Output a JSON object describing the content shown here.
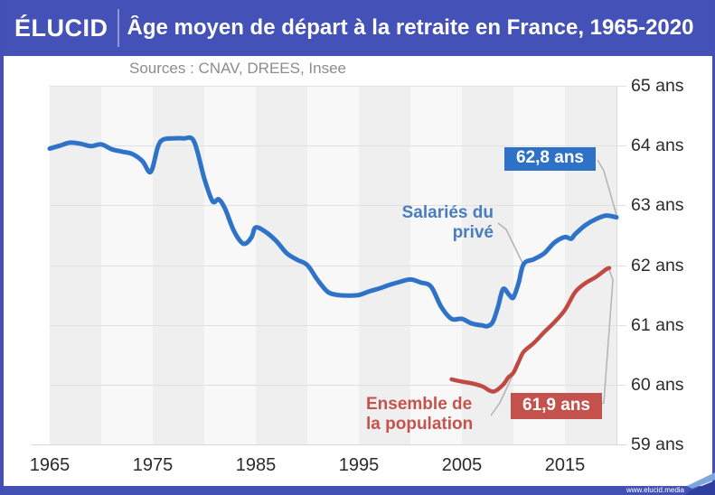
{
  "header": {
    "logo": "ÉLUCID",
    "title": "Âge moyen de départ à la retraite en France, 1965-2020"
  },
  "sources": "Sources : CNAV, DREES, Insee",
  "footer": {
    "url": "www.elucid.media"
  },
  "annotations": {
    "private_label_line1": "Salariés du",
    "private_label_line2": "privé",
    "private_badge": "62,8 ans",
    "population_label_line1": "Ensemble de",
    "population_label_line2": "la population",
    "population_badge": "61,9 ans"
  },
  "colors": {
    "header_blue": "#4452b8",
    "private_line": "#2f73c8",
    "population_line": "#bf4943",
    "private_badge_bg": "#2e72c7",
    "population_badge_bg": "#c4524c",
    "gridline": "#e0e0e0",
    "leader": "#b3b3b3"
  },
  "chart_data": {
    "type": "line",
    "title": "Âge moyen de départ à la retraite en France, 1965-2020",
    "sources": "Sources : CNAV, DREES, Insee",
    "x_axis": {
      "ticks": [
        1965,
        1975,
        1985,
        1995,
        2005,
        2015
      ],
      "range": [
        1965,
        2020
      ]
    },
    "y_axis": {
      "tick_labels": [
        "65 ans",
        "64 ans",
        "63 ans",
        "62 ans",
        "61 ans",
        "60 ans",
        "59 ans"
      ],
      "range": [
        59,
        65
      ],
      "unit": "ans",
      "grid": true
    },
    "legend_position": "inline-annotations",
    "series": [
      {
        "name": "Salariés du privé",
        "color": "#2f73c8",
        "end_label": "62,8 ans",
        "end_value": 62.8,
        "points": [
          [
            1965,
            63.95
          ],
          [
            1966,
            64.0
          ],
          [
            1967,
            64.05
          ],
          [
            1968,
            64.03
          ],
          [
            1969,
            63.99
          ],
          [
            1970,
            64.02
          ],
          [
            1971,
            63.94
          ],
          [
            1972,
            63.9
          ],
          [
            1973,
            63.86
          ],
          [
            1974,
            63.74
          ],
          [
            1974.8,
            63.56
          ],
          [
            1975.5,
            63.98
          ],
          [
            1976,
            64.1
          ],
          [
            1977,
            64.12
          ],
          [
            1978,
            64.12
          ],
          [
            1979,
            64.07
          ],
          [
            1980,
            63.45
          ],
          [
            1980.8,
            63.07
          ],
          [
            1981.4,
            63.1
          ],
          [
            1982,
            62.95
          ],
          [
            1982.8,
            62.6
          ],
          [
            1983.5,
            62.4
          ],
          [
            1984,
            62.36
          ],
          [
            1984.6,
            62.47
          ],
          [
            1985,
            62.63
          ],
          [
            1986,
            62.55
          ],
          [
            1987,
            62.4
          ],
          [
            1988,
            62.2
          ],
          [
            1989,
            62.09
          ],
          [
            1990,
            62.0
          ],
          [
            1991,
            61.75
          ],
          [
            1992,
            61.55
          ],
          [
            1993,
            61.5
          ],
          [
            1994,
            61.49
          ],
          [
            1995,
            61.5
          ],
          [
            1996,
            61.56
          ],
          [
            1997,
            61.61
          ],
          [
            1998,
            61.67
          ],
          [
            1999,
            61.72
          ],
          [
            2000,
            61.76
          ],
          [
            2001,
            61.71
          ],
          [
            2002,
            61.64
          ],
          [
            2003,
            61.3
          ],
          [
            2004,
            61.1
          ],
          [
            2005,
            61.1
          ],
          [
            2006,
            61.02
          ],
          [
            2007,
            60.99
          ],
          [
            2007.5,
            60.98
          ],
          [
            2008,
            61.05
          ],
          [
            2008.5,
            61.3
          ],
          [
            2009,
            61.6
          ],
          [
            2009.6,
            61.5
          ],
          [
            2010,
            61.46
          ],
          [
            2010.5,
            61.7
          ],
          [
            2011,
            62.02
          ],
          [
            2012,
            62.1
          ],
          [
            2013,
            62.2
          ],
          [
            2014,
            62.38
          ],
          [
            2015,
            62.47
          ],
          [
            2015.6,
            62.44
          ],
          [
            2016,
            62.52
          ],
          [
            2017,
            62.67
          ],
          [
            2018,
            62.77
          ],
          [
            2019,
            62.83
          ],
          [
            2020,
            62.8
          ]
        ]
      },
      {
        "name": "Ensemble de la population",
        "color": "#bf4943",
        "end_label": "61,9 ans",
        "end_value": 61.9,
        "points": [
          [
            2004,
            60.09
          ],
          [
            2005,
            60.05
          ],
          [
            2006,
            60.02
          ],
          [
            2007,
            59.97
          ],
          [
            2007.7,
            59.9
          ],
          [
            2008.2,
            59.89
          ],
          [
            2009,
            60.0
          ],
          [
            2009.5,
            60.12
          ],
          [
            2010,
            60.2
          ],
          [
            2010.5,
            60.38
          ],
          [
            2011,
            60.55
          ],
          [
            2012,
            60.7
          ],
          [
            2013,
            60.88
          ],
          [
            2014,
            61.05
          ],
          [
            2015,
            61.25
          ],
          [
            2016,
            61.55
          ],
          [
            2017,
            61.7
          ],
          [
            2018,
            61.8
          ],
          [
            2019,
            61.93
          ],
          [
            2019.3,
            61.95
          ]
        ]
      }
    ]
  }
}
